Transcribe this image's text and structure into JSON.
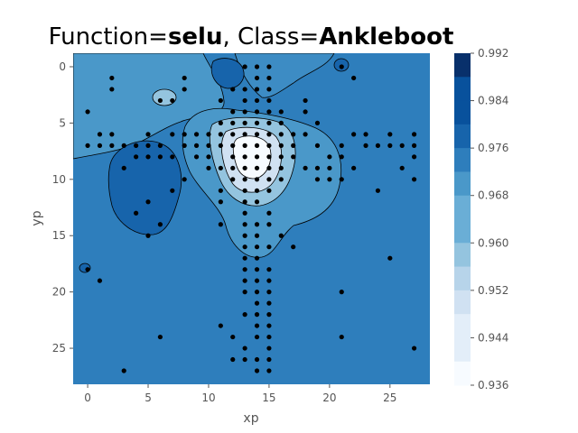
{
  "chart_data": {
    "type": "contour",
    "title_prefix": "Function=",
    "title_function": "selu",
    "title_mid": ", Class=",
    "title_class": "Ankleboot",
    "xlabel": "xp",
    "ylabel": "yp",
    "xlim": [
      -1.2,
      28.3
    ],
    "ylim": [
      28.2,
      -1.2
    ],
    "xticks": [
      0,
      5,
      10,
      15,
      20,
      25
    ],
    "yticks": [
      0,
      5,
      10,
      15,
      20,
      25
    ],
    "colorbar": {
      "vmin": 0.936,
      "vmax": 0.992,
      "ticks": [
        "0.992",
        "0.984",
        "0.976",
        "0.968",
        "0.960",
        "0.952",
        "0.944",
        "0.936"
      ],
      "levels": [
        0.936,
        0.94,
        0.944,
        0.948,
        0.952,
        0.956,
        0.96,
        0.964,
        0.968,
        0.972,
        0.976,
        0.98,
        0.984,
        0.988,
        0.992
      ],
      "colors": [
        "#f7fbff",
        "#e3eef9",
        "#d0e1f2",
        "#b7d4ea",
        "#94c4df",
        "#6aaed6",
        "#4a98c9",
        "#2e7ebc",
        "#1764ab",
        "#08519c",
        "#08306b"
      ]
    },
    "regions": [
      {
        "name": "background",
        "level": 0.977
      },
      {
        "name": "upper-left-light",
        "level": 0.97
      },
      {
        "name": "left-dark",
        "level": 0.982
      },
      {
        "name": "center-bright",
        "level": 0.943
      }
    ],
    "points": [
      [
        13,
        0
      ],
      [
        14,
        0
      ],
      [
        15,
        0
      ],
      [
        21,
        0
      ],
      [
        2,
        1
      ],
      [
        8,
        1
      ],
      [
        14,
        1
      ],
      [
        15,
        1
      ],
      [
        22,
        1
      ],
      [
        2,
        2
      ],
      [
        8,
        2
      ],
      [
        12,
        2
      ],
      [
        13,
        2
      ],
      [
        14,
        2
      ],
      [
        15,
        2
      ],
      [
        13,
        3
      ],
      [
        14,
        3
      ],
      [
        15,
        3
      ],
      [
        6,
        3
      ],
      [
        7,
        3
      ],
      [
        11,
        3
      ],
      [
        18,
        3
      ],
      [
        0,
        4
      ],
      [
        12,
        4
      ],
      [
        13,
        4
      ],
      [
        14,
        4
      ],
      [
        15,
        4
      ],
      [
        16,
        4
      ],
      [
        18,
        4
      ],
      [
        11,
        5
      ],
      [
        12,
        5
      ],
      [
        13,
        5
      ],
      [
        14,
        5
      ],
      [
        15,
        5
      ],
      [
        16,
        5
      ],
      [
        19,
        5
      ],
      [
        1,
        6
      ],
      [
        2,
        6
      ],
      [
        5,
        6
      ],
      [
        7,
        6
      ],
      [
        8,
        6
      ],
      [
        9,
        6
      ],
      [
        10,
        6
      ],
      [
        11,
        6
      ],
      [
        12,
        6
      ],
      [
        13,
        6
      ],
      [
        14,
        6
      ],
      [
        15,
        6
      ],
      [
        16,
        6
      ],
      [
        17,
        6
      ],
      [
        18,
        6
      ],
      [
        22,
        6
      ],
      [
        23,
        6
      ],
      [
        25,
        6
      ],
      [
        27,
        6
      ],
      [
        0,
        7
      ],
      [
        1,
        7
      ],
      [
        2,
        7
      ],
      [
        3,
        7
      ],
      [
        4,
        7
      ],
      [
        5,
        7
      ],
      [
        6,
        7
      ],
      [
        8,
        7
      ],
      [
        9,
        7
      ],
      [
        10,
        7
      ],
      [
        11,
        7
      ],
      [
        12,
        7
      ],
      [
        13,
        7
      ],
      [
        14,
        7
      ],
      [
        15,
        7
      ],
      [
        16,
        7
      ],
      [
        17,
        7
      ],
      [
        19,
        7
      ],
      [
        21,
        7
      ],
      [
        23,
        7
      ],
      [
        24,
        7
      ],
      [
        25,
        7
      ],
      [
        26,
        7
      ],
      [
        27,
        7
      ],
      [
        4,
        8
      ],
      [
        5,
        8
      ],
      [
        6,
        8
      ],
      [
        7,
        8
      ],
      [
        9,
        8
      ],
      [
        10,
        8
      ],
      [
        12,
        8
      ],
      [
        13,
        8
      ],
      [
        14,
        8
      ],
      [
        15,
        8
      ],
      [
        16,
        8
      ],
      [
        17,
        8
      ],
      [
        20,
        8
      ],
      [
        21,
        8
      ],
      [
        27,
        8
      ],
      [
        3,
        9
      ],
      [
        10,
        9
      ],
      [
        11,
        9
      ],
      [
        12,
        9
      ],
      [
        13,
        9
      ],
      [
        14,
        9
      ],
      [
        15,
        9
      ],
      [
        16,
        9
      ],
      [
        18,
        9
      ],
      [
        19,
        9
      ],
      [
        20,
        9
      ],
      [
        22,
        9
      ],
      [
        26,
        9
      ],
      [
        8,
        10
      ],
      [
        12,
        10
      ],
      [
        13,
        10
      ],
      [
        14,
        10
      ],
      [
        15,
        10
      ],
      [
        16,
        10
      ],
      [
        19,
        10
      ],
      [
        20,
        10
      ],
      [
        21,
        10
      ],
      [
        27,
        10
      ],
      [
        7,
        11
      ],
      [
        11,
        11
      ],
      [
        13,
        11
      ],
      [
        14,
        11
      ],
      [
        15,
        11
      ],
      [
        24,
        11
      ],
      [
        5,
        12
      ],
      [
        11,
        12
      ],
      [
        13,
        12
      ],
      [
        14,
        12
      ],
      [
        4,
        13
      ],
      [
        13,
        13
      ],
      [
        15,
        13
      ],
      [
        6,
        14
      ],
      [
        11,
        14
      ],
      [
        13,
        14
      ],
      [
        14,
        14
      ],
      [
        15,
        14
      ],
      [
        5,
        15
      ],
      [
        13,
        15
      ],
      [
        14,
        15
      ],
      [
        16,
        15
      ],
      [
        13,
        16
      ],
      [
        14,
        16
      ],
      [
        15,
        16
      ],
      [
        17,
        16
      ],
      [
        13,
        17
      ],
      [
        14,
        17
      ],
      [
        25,
        17
      ],
      [
        0,
        18
      ],
      [
        13,
        18
      ],
      [
        14,
        18
      ],
      [
        15,
        18
      ],
      [
        1,
        19
      ],
      [
        13,
        19
      ],
      [
        14,
        19
      ],
      [
        15,
        19
      ],
      [
        13,
        20
      ],
      [
        14,
        20
      ],
      [
        15,
        20
      ],
      [
        21,
        20
      ],
      [
        14,
        21
      ],
      [
        15,
        21
      ],
      [
        13,
        22
      ],
      [
        14,
        22
      ],
      [
        15,
        22
      ],
      [
        11,
        23
      ],
      [
        14,
        23
      ],
      [
        15,
        23
      ],
      [
        6,
        24
      ],
      [
        12,
        24
      ],
      [
        14,
        24
      ],
      [
        15,
        24
      ],
      [
        21,
        24
      ],
      [
        13,
        25
      ],
      [
        15,
        25
      ],
      [
        27,
        25
      ],
      [
        12,
        26
      ],
      [
        13,
        26
      ],
      [
        14,
        26
      ],
      [
        15,
        26
      ],
      [
        3,
        27
      ],
      [
        14,
        27
      ],
      [
        15,
        27
      ]
    ]
  }
}
